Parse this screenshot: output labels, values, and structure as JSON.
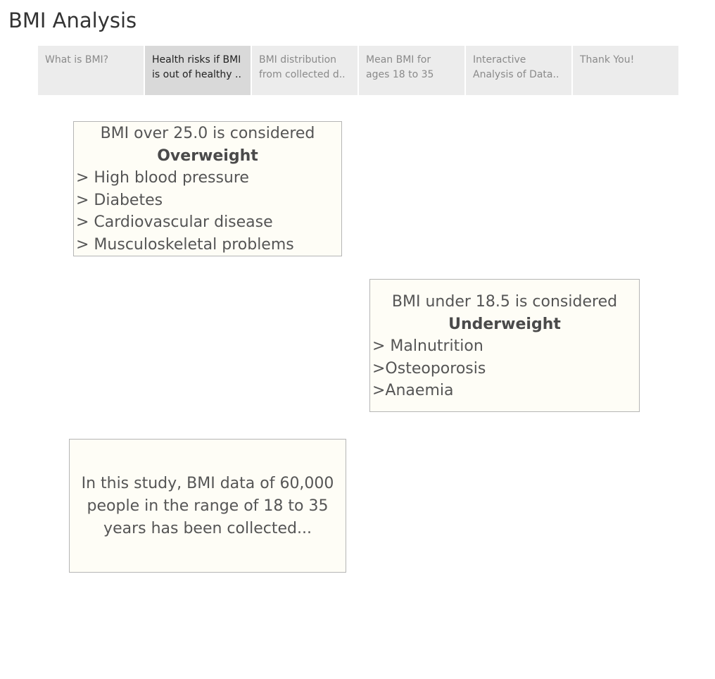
{
  "title": "BMI Analysis",
  "tabs": [
    {
      "line1": "What is BMI?",
      "line2": "",
      "active": false
    },
    {
      "line1": "Health risks if BMI",
      "line2": "is out of healthy ..",
      "active": true
    },
    {
      "line1": "BMI distribution",
      "line2": "from collected d..",
      "active": false
    },
    {
      "line1": "Mean BMI for",
      "line2": "ages 18 to 35",
      "active": false
    },
    {
      "line1": "Interactive",
      "line2": "Analysis of Data..",
      "active": false
    },
    {
      "line1": "Thank You!",
      "line2": "",
      "active": false
    }
  ],
  "overweight": {
    "heading": "BMI over 25.0 is considered",
    "category": "Overweight",
    "items": [
      "> High blood pressure",
      "> Diabetes",
      "> Cardiovascular disease",
      "> Musculoskeletal problems"
    ]
  },
  "underweight": {
    "heading": "BMI under 18.5 is considered",
    "category": "Underweight",
    "items": [
      "> Malnutrition",
      ">Osteoporosis",
      ">Anaemia"
    ]
  },
  "study": {
    "text": "In this study, BMI data of 60,000 people in the range of 18 to 35 years has been collected..."
  },
  "colors": {
    "tab_bg": "#ececec",
    "tab_active_bg": "#d9d9d9",
    "box_bg": "#fefdf6",
    "box_border": "#b5b5b5",
    "text": "#555555"
  }
}
